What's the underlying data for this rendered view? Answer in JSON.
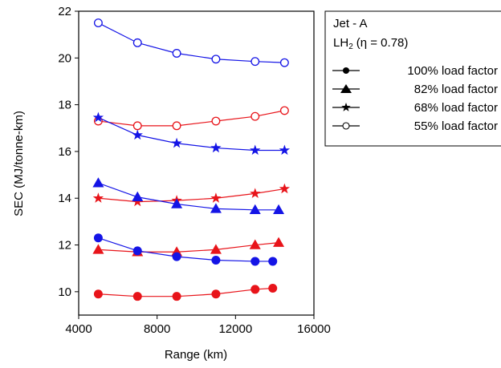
{
  "chart_data": {
    "type": "line",
    "xlabel": "Range (km)",
    "ylabel": "SEC (MJ/tonne-km)",
    "xlim": [
      4000,
      16000
    ],
    "ylim": [
      9,
      22
    ],
    "x_ticks": [
      4000,
      8000,
      12000,
      16000
    ],
    "x_tick_labels": [
      "4000",
      "8000",
      "12000",
      "16000"
    ],
    "y_ticks": [
      10,
      12,
      14,
      16,
      18,
      20,
      22
    ],
    "y_tick_labels": [
      "10",
      "12",
      "14",
      "16",
      "18",
      "20",
      "22"
    ],
    "grid": false,
    "legend_position": "right",
    "legend": {
      "fuel_jet_label": "Jet - A",
      "fuel_lh2_label_main": "LH",
      "fuel_lh2_label_sub": "2",
      "fuel_lh2_label_eta": "(η = 0.78)",
      "load_labels": [
        "100% load factor",
        "82% load factor",
        "68% load factor",
        "55% load factor"
      ],
      "load_markers": [
        "circle",
        "triangle",
        "star",
        "open-circle"
      ]
    },
    "colors": {
      "jet": "#e8141a",
      "lh2": "#1414e6"
    },
    "series": [
      {
        "fuel": "jet",
        "marker": "circle",
        "x": [
          5000,
          7000,
          9000,
          11000,
          13000,
          13900
        ],
        "y": [
          9.9,
          9.8,
          9.8,
          9.9,
          10.1,
          10.15
        ]
      },
      {
        "fuel": "jet",
        "marker": "triangle",
        "x": [
          5000,
          7000,
          9000,
          11000,
          13000,
          14200
        ],
        "y": [
          11.8,
          11.7,
          11.7,
          11.8,
          12.0,
          12.1
        ]
      },
      {
        "fuel": "jet",
        "marker": "star",
        "x": [
          5000,
          7000,
          9000,
          11000,
          13000,
          14500
        ],
        "y": [
          14.0,
          13.85,
          13.9,
          14.0,
          14.2,
          14.4
        ]
      },
      {
        "fuel": "jet",
        "marker": "open-circle",
        "x": [
          5000,
          7000,
          9000,
          11000,
          13000,
          14500
        ],
        "y": [
          17.3,
          17.1,
          17.1,
          17.3,
          17.5,
          17.75
        ]
      },
      {
        "fuel": "lh2",
        "marker": "circle",
        "x": [
          5000,
          7000,
          9000,
          11000,
          13000,
          13900
        ],
        "y": [
          12.3,
          11.75,
          11.5,
          11.35,
          11.3,
          11.3
        ]
      },
      {
        "fuel": "lh2",
        "marker": "triangle",
        "x": [
          5000,
          7000,
          9000,
          11000,
          13000,
          14200
        ],
        "y": [
          14.65,
          14.05,
          13.75,
          13.55,
          13.5,
          13.5
        ]
      },
      {
        "fuel": "lh2",
        "marker": "star",
        "x": [
          5000,
          7000,
          9000,
          11000,
          13000,
          14500
        ],
        "y": [
          17.45,
          16.7,
          16.35,
          16.15,
          16.05,
          16.05
        ]
      },
      {
        "fuel": "lh2",
        "marker": "open-circle",
        "x": [
          5000,
          7000,
          9000,
          11000,
          13000,
          14500
        ],
        "y": [
          21.5,
          20.65,
          20.2,
          19.95,
          19.85,
          19.8
        ]
      }
    ]
  }
}
